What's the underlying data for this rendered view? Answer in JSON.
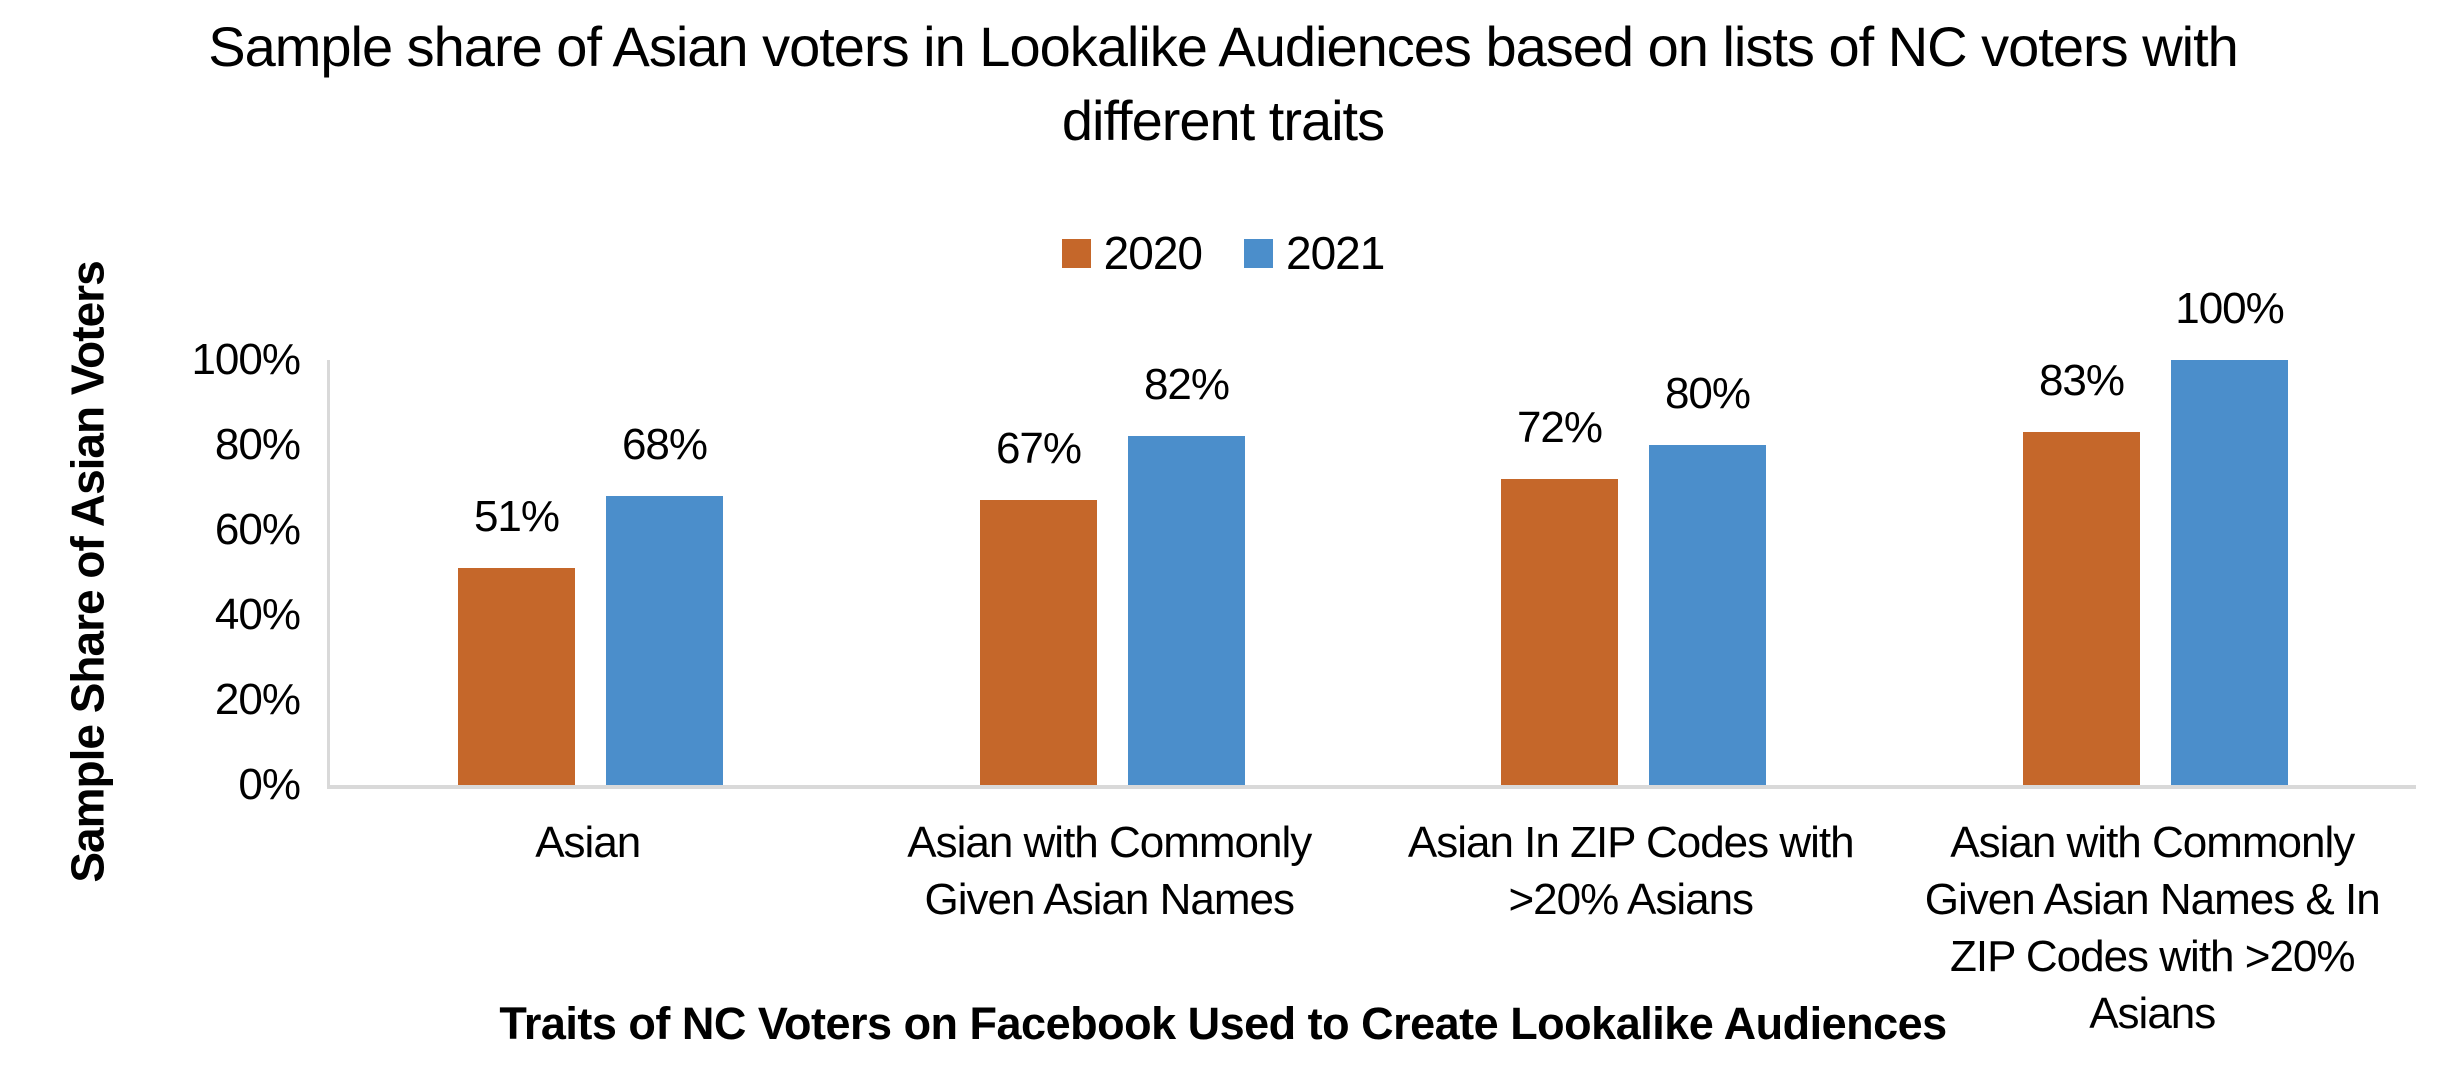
{
  "chart_data": {
    "type": "bar",
    "title": "Sample share of Asian voters in Lookalike Audiences based on lists of NC voters with different traits",
    "xlabel": "Traits of NC Voters on Facebook Used to Create Lookalike Audiences",
    "ylabel": "Sample Share of Asian Voters",
    "categories": [
      "Asian",
      "Asian with Commonly Given Asian Names",
      "Asian In ZIP Codes with >20% Asians",
      "Asian with Commonly Given Asian Names & In ZIP Codes with >20% Asians"
    ],
    "series": [
      {
        "name": "2020",
        "color": "#C5672A",
        "values": [
          51,
          67,
          72,
          83
        ]
      },
      {
        "name": "2021",
        "color": "#4B8ECB",
        "values": [
          68,
          82,
          80,
          100
        ]
      }
    ],
    "data_labels": [
      "51%",
      "67%",
      "72%",
      "83%",
      "68%",
      "82%",
      "80%",
      "100%"
    ],
    "value_suffix": "%",
    "ylim": [
      0,
      100
    ],
    "yticks": [
      0,
      20,
      40,
      60,
      80,
      100
    ],
    "ytick_labels": [
      "0%",
      "20%",
      "40%",
      "60%",
      "80%",
      "100%"
    ],
    "grid": false,
    "show_data_labels": true,
    "legend_position": "top-center",
    "axis_line_color": "#D9D9D9",
    "text_color": "#000000",
    "background": "#FFFFFF"
  }
}
